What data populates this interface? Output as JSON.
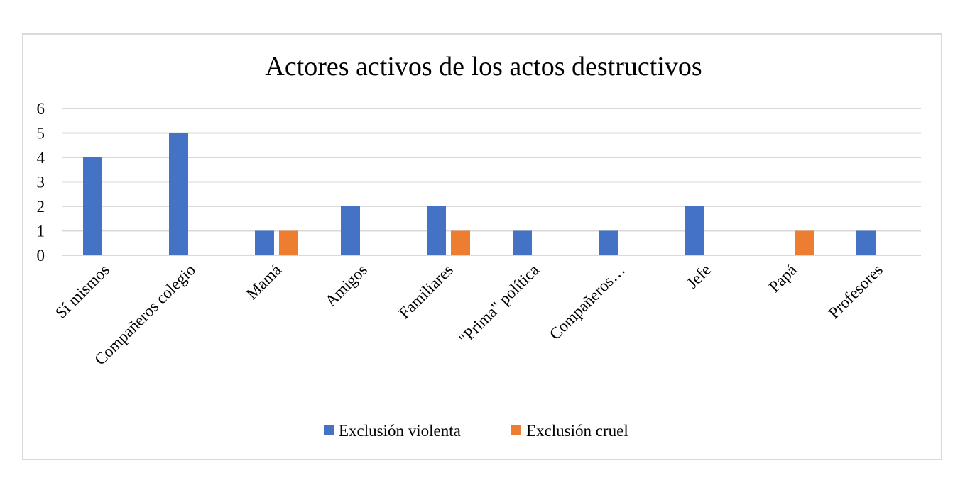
{
  "chart_data": {
    "type": "bar",
    "title": "Actores activos de los actos destructivos",
    "xlabel": "",
    "ylabel": "",
    "ylim": [
      0,
      6
    ],
    "yticks": [
      0,
      1,
      2,
      3,
      4,
      5,
      6
    ],
    "grid": true,
    "legend_position": "bottom",
    "categories": [
      "Sí mismos",
      "Compañeros  colegio",
      "Mamá",
      "Amigos",
      "Familiares",
      "\"Prima\" política",
      "Compañeros…",
      "Jefe",
      "Papá",
      "Profesores"
    ],
    "series": [
      {
        "name": "Exclusión violenta",
        "color": "#4472c4",
        "values": [
          4,
          5,
          1,
          2,
          2,
          1,
          1,
          2,
          0,
          1
        ]
      },
      {
        "name": "Exclusión cruel",
        "color": "#ed7d31",
        "values": [
          0,
          0,
          1,
          0,
          1,
          0,
          0,
          0,
          1,
          0
        ]
      }
    ]
  }
}
